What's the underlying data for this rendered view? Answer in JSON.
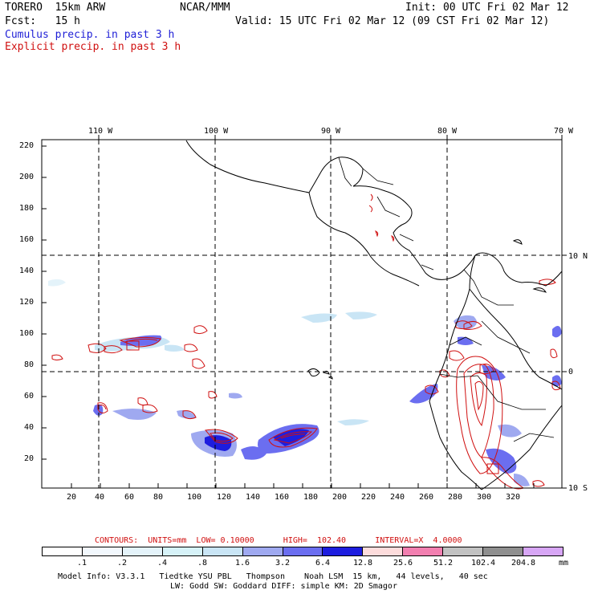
{
  "header": {
    "model": "TORERO  15km ARW",
    "center": "NCAR/MMM",
    "init": "Init: 00 UTC Fri 02 Mar 12",
    "fcst": "Fcst:   15 h",
    "valid": "Valid: 15 UTC Fri 02 Mar 12 (09 CST Fri 02 Mar 12)",
    "legend_cumulus": "Cumulus precip. in past 3 h",
    "legend_explicit": "Explicit precip. in past 3 h"
  },
  "map": {
    "lon_labels": [
      "110 W",
      "100 W",
      "90 W",
      "80 W",
      "70 W"
    ],
    "lat_labels": [
      "10 N",
      "0",
      "10 S"
    ],
    "y_ticks": [
      "220",
      "200",
      "180",
      "160",
      "140",
      "120",
      "100",
      "80",
      "60",
      "40",
      "20"
    ],
    "x_ticks": [
      "20",
      "40",
      "60",
      "80",
      "100",
      "120",
      "140",
      "160",
      "180",
      "200",
      "220",
      "240",
      "260",
      "280",
      "300",
      "320"
    ]
  },
  "contours": {
    "text": "CONTOURS:  UNITS=mm  LOW= 0.10000      HIGH=  102.40      INTERVAL=X  4.0000"
  },
  "colorbar": {
    "labels": [
      ".1",
      ".2",
      ".4",
      ".8",
      "1.6",
      "3.2",
      "6.4",
      "12.8",
      "25.6",
      "51.2",
      "102.4",
      "204.8"
    ],
    "unit": "mm",
    "colors": [
      "#ffffff",
      "#f2f8fd",
      "#e4f3fa",
      "#d6f2f8",
      "#c9e5f5",
      "#9fa9f0",
      "#6b6ef0",
      "#1d1ddf",
      "#fddcdc",
      "#f27fb0",
      "#c2c2c2",
      "#8f8f8f",
      "#d7a6f5"
    ]
  },
  "footer": {
    "line1": "Model Info: V3.3.1   Tiedtke YSU PBL   Thompson    Noah LSM  15 km,   44 levels,   40 sec",
    "line2": "LW: Godd SW: Goddard DIFF: simple KM: 2D Smagor"
  }
}
